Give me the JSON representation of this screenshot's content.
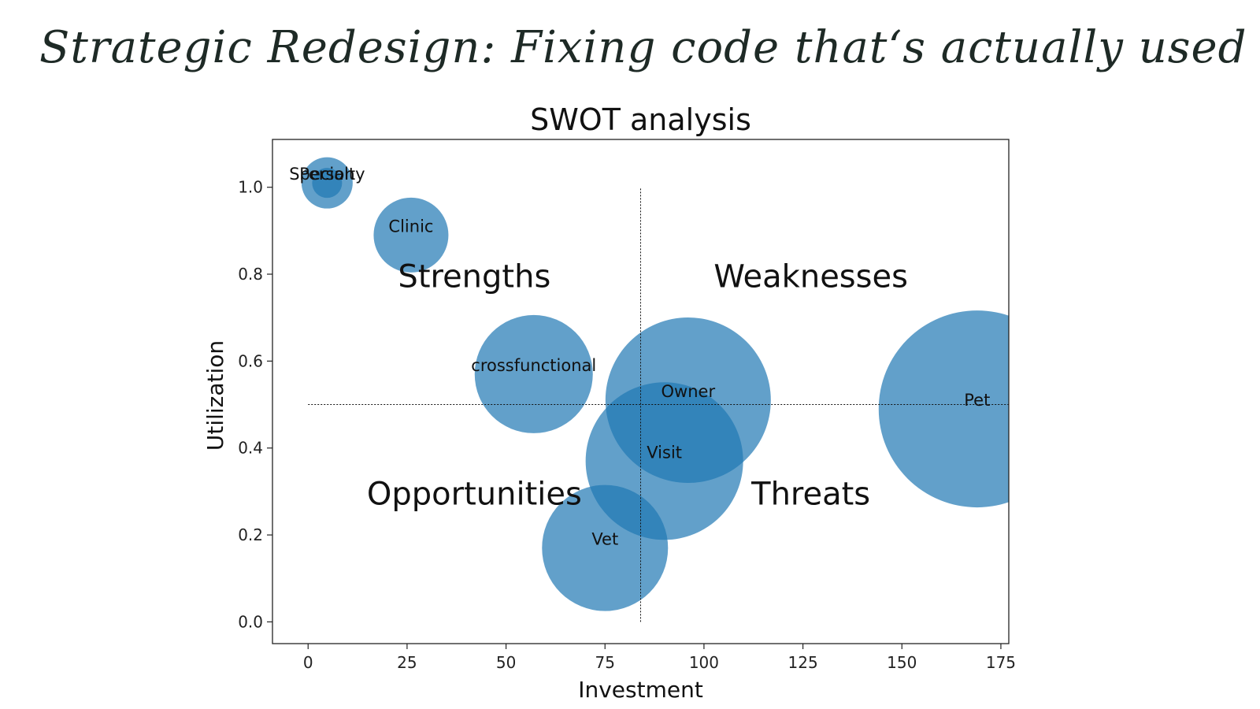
{
  "slide": {
    "title": "Strategic Redesign: Fixing code that‘s actually used"
  },
  "colors": {
    "bubble": "#1f77b4",
    "text": "#111111",
    "title": "#1e2a26"
  },
  "chart_data": {
    "type": "scatter",
    "title": "SWOT analysis",
    "xlabel": "Investment",
    "ylabel": "Utilization",
    "xlim": [
      -9,
      177
    ],
    "ylim": [
      -0.05,
      1.11
    ],
    "xticks": [
      0,
      25,
      50,
      75,
      100,
      125,
      150,
      175
    ],
    "yticks": [
      0.0,
      0.2,
      0.4,
      0.6,
      0.8,
      1.0
    ],
    "xtick_labels": [
      "0",
      "25",
      "50",
      "75",
      "100",
      "125",
      "150",
      "175"
    ],
    "ytick_labels": [
      "0.0",
      "0.2",
      "0.4",
      "0.6",
      "0.8",
      "1.0"
    ],
    "grid": false,
    "bubble_alpha": 0.7,
    "divider": {
      "x": 84,
      "y": 0.5,
      "x_start": 0,
      "y_start": 0.0,
      "x_end": 177,
      "y_end": 1.0
    },
    "bubbles": [
      {
        "label": "Specialty",
        "x": 4.8,
        "y": 1.01,
        "size": 6.5
      },
      {
        "label": "Person",
        "x": 4.8,
        "y": 1.01,
        "size": 3.8
      },
      {
        "label": "Clinic",
        "x": 26,
        "y": 0.89,
        "size": 9.5
      },
      {
        "label": "crossfunctional",
        "x": 57,
        "y": 0.57,
        "size": 15
      },
      {
        "label": "Owner",
        "x": 96,
        "y": 0.51,
        "size": 21
      },
      {
        "label": "Visit",
        "x": 90,
        "y": 0.37,
        "size": 20
      },
      {
        "label": "Vet",
        "x": 75,
        "y": 0.17,
        "size": 16
      },
      {
        "label": "Pet",
        "x": 169,
        "y": 0.49,
        "size": 25
      }
    ],
    "quadrants": [
      {
        "label": "Strengths",
        "x": 42,
        "y": 0.77
      },
      {
        "label": "Weaknesses",
        "x": 127,
        "y": 0.77
      },
      {
        "label": "Opportunities",
        "x": 42,
        "y": 0.27
      },
      {
        "label": "Threats",
        "x": 127,
        "y": 0.27
      }
    ]
  }
}
